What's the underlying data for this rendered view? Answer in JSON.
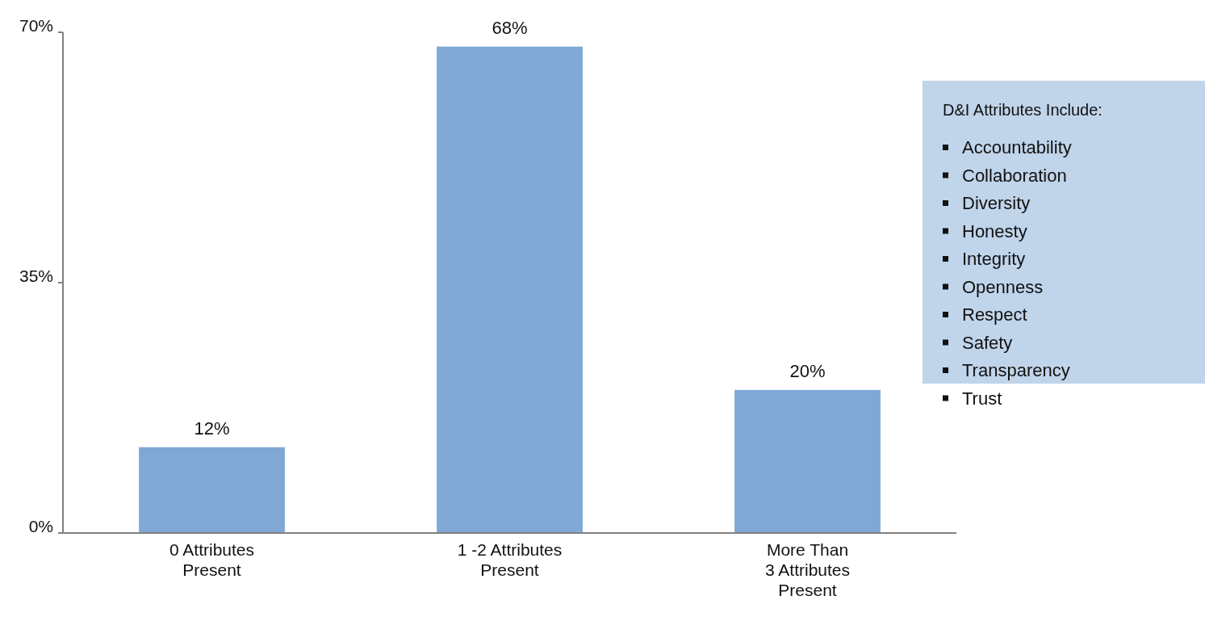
{
  "chart_data": {
    "type": "bar",
    "categories": [
      "0 Attributes\nPresent",
      "1 -2 Attributes\nPresent",
      "More Than\n3 Attributes\nPresent"
    ],
    "values": [
      12,
      68,
      20
    ],
    "value_labels": [
      "12%",
      "68%",
      "20%"
    ],
    "color": "#7fa8d5",
    "ylim": [
      0,
      70
    ],
    "yticks": [
      {
        "value": 0,
        "label": "0%"
      },
      {
        "value": 35,
        "label": "35%"
      },
      {
        "value": 70,
        "label": "70%"
      }
    ],
    "annotations": [
      "D&I Attributes Include:",
      "Accountability",
      "Collaboration",
      "Diversity",
      "Honesty",
      "Integrity",
      "Openness",
      "Respect",
      "Safety",
      "Transparency",
      "Trust"
    ]
  }
}
